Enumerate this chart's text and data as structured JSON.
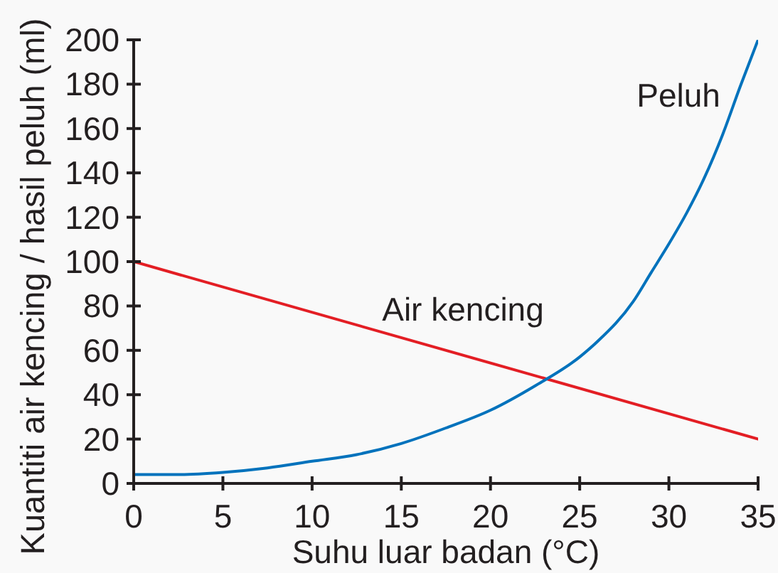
{
  "chart_data": {
    "type": "line",
    "xlabel": "Suhu luar badan (°C)",
    "ylabel": "Kuantiti air kencing / hasil peluh (ml)",
    "xlim": [
      0,
      35
    ],
    "xticks": [
      0,
      5,
      10,
      15,
      20,
      25,
      30,
      35
    ],
    "ylim": [
      0,
      200
    ],
    "yticks": [
      0,
      20,
      40,
      60,
      80,
      100,
      120,
      140,
      160,
      180,
      200
    ],
    "marker": "none",
    "line_style": "solid",
    "series": [
      {
        "name": "Air kencing",
        "color": "#e31e24",
        "x": [
          0,
          35
        ],
        "values": [
          100,
          20
        ]
      },
      {
        "name": "Peluh",
        "color": "#0072bc",
        "x": [
          0,
          2.5,
          5,
          7.5,
          10,
          12.5,
          15,
          17.5,
          20,
          22.5,
          25,
          26,
          28,
          29,
          30,
          31,
          32,
          33,
          34,
          35
        ],
        "values": [
          4,
          4,
          5,
          7,
          10,
          13,
          18,
          25,
          33,
          44,
          57,
          64,
          82,
          95,
          108,
          122,
          138,
          157,
          179,
          200
        ]
      }
    ]
  }
}
